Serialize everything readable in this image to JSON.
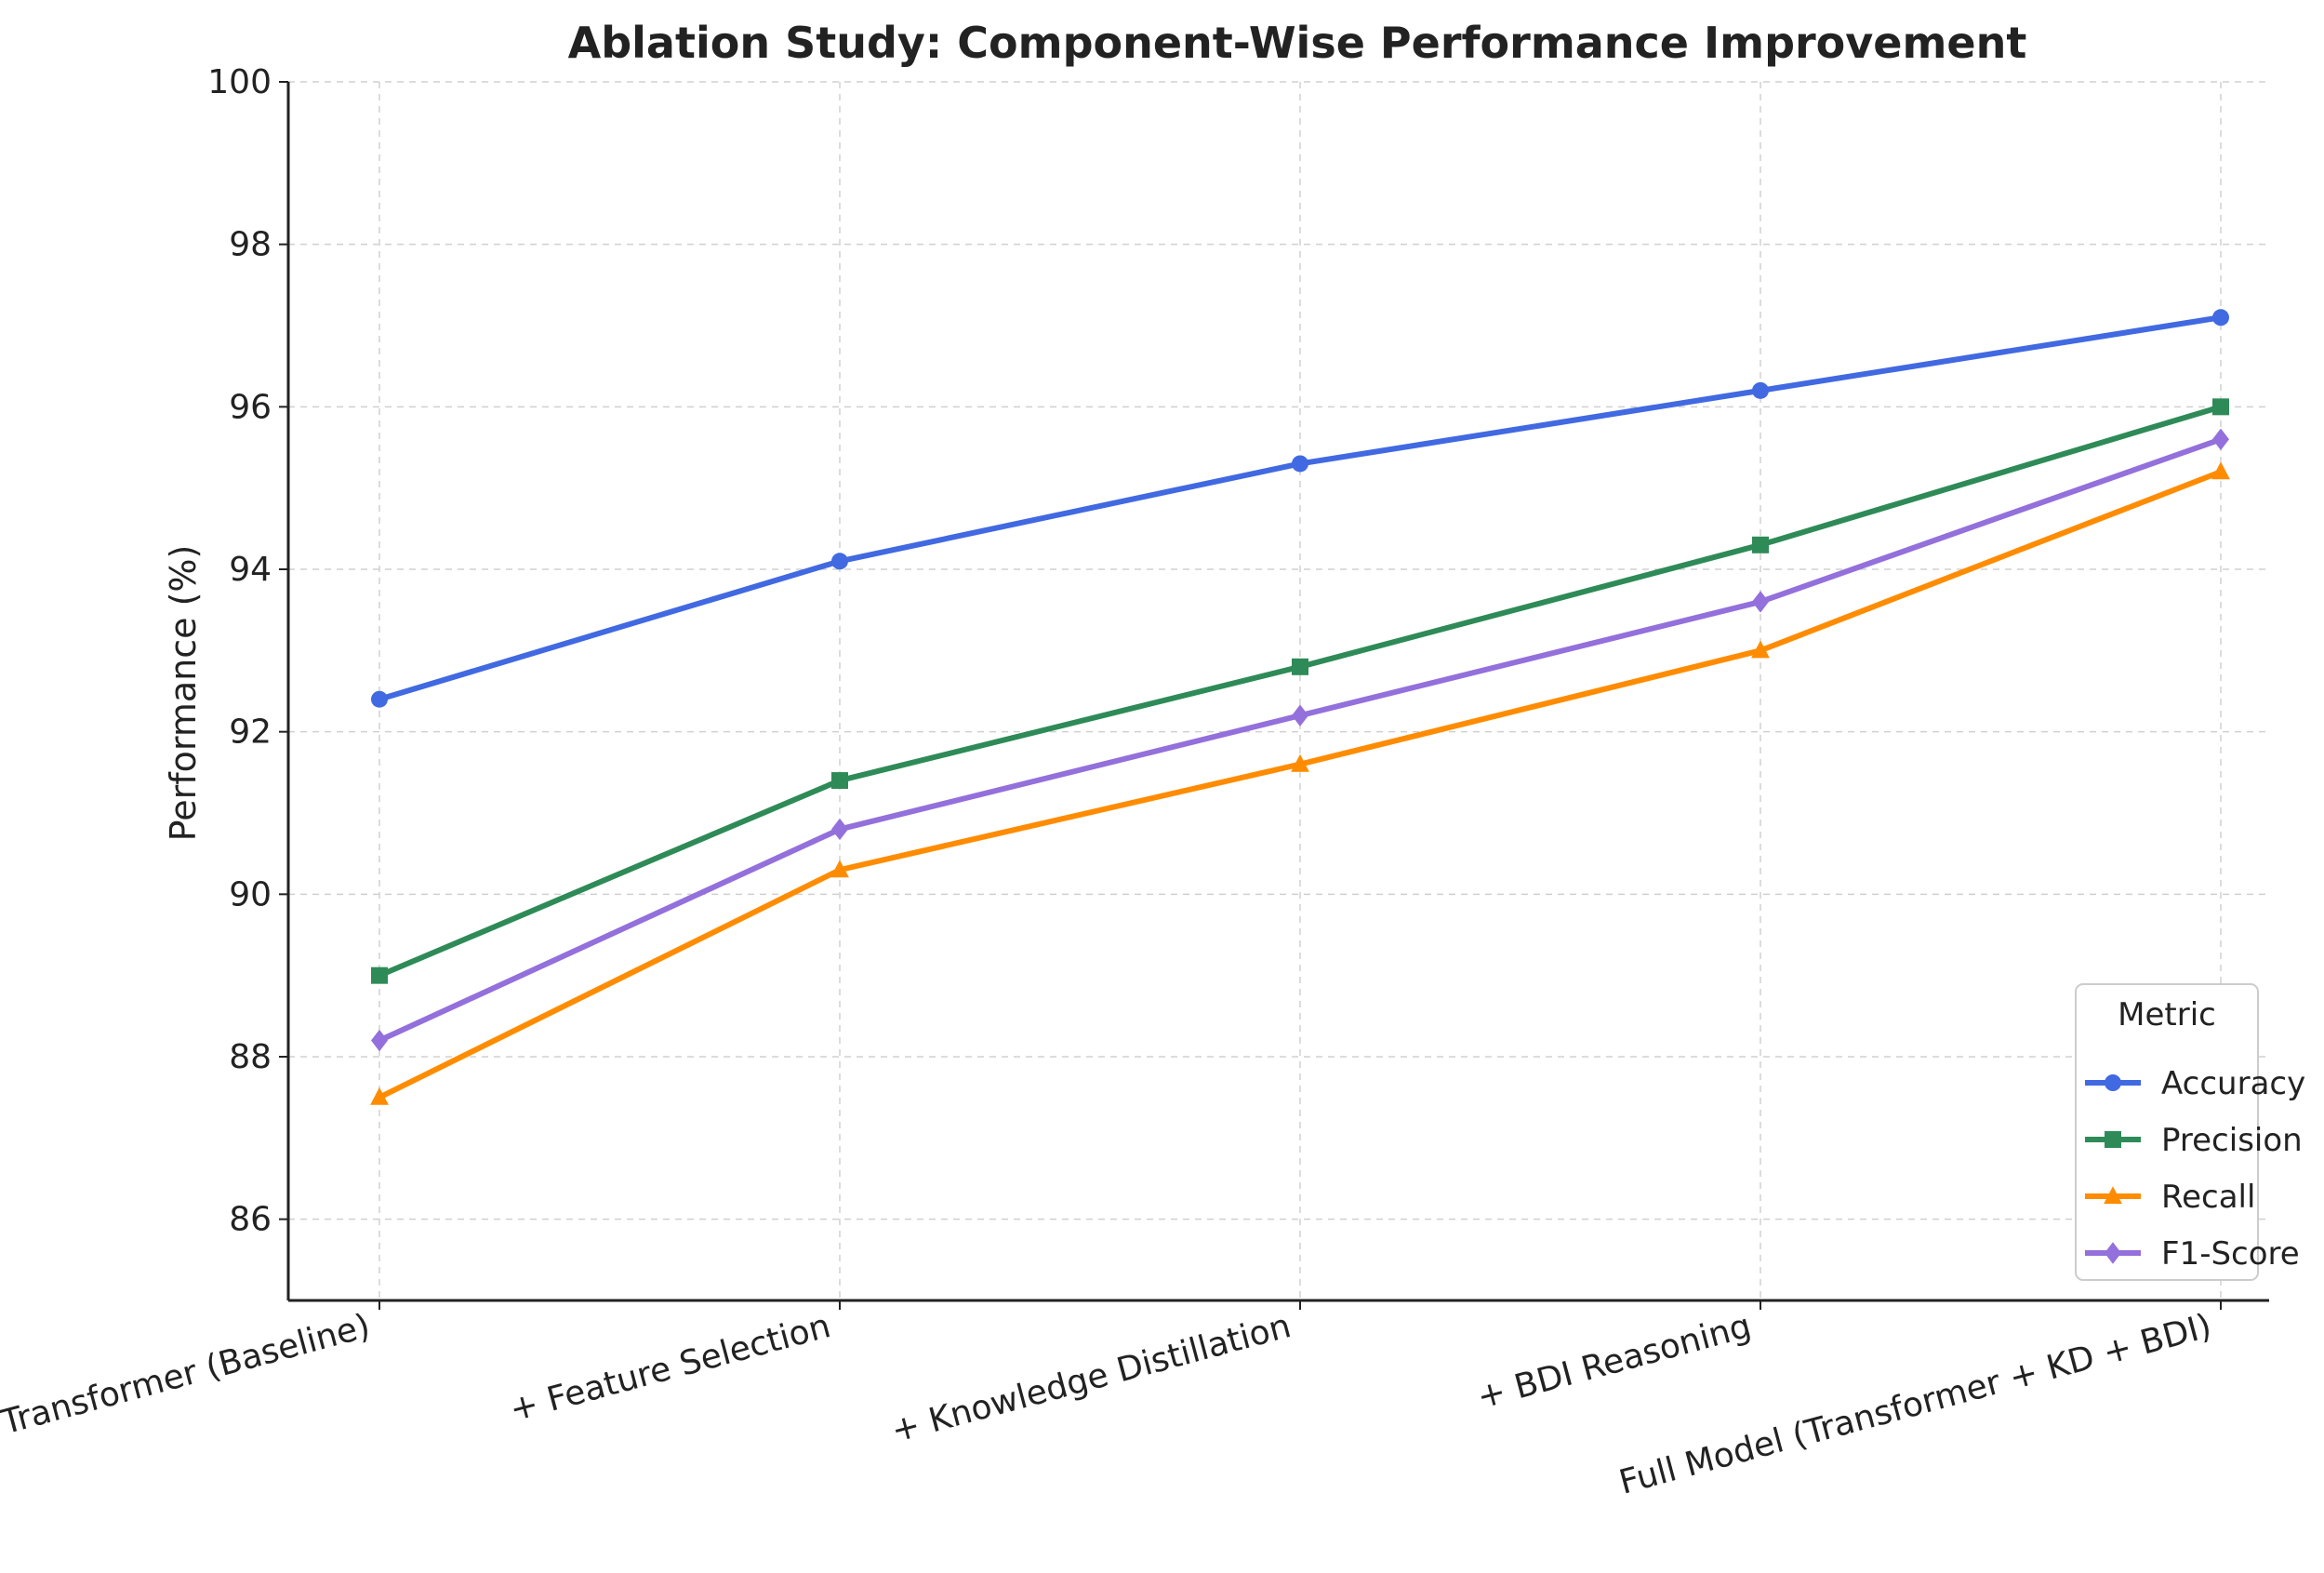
{
  "chart_data": {
    "type": "line",
    "title": "Ablation Study: Component-Wise Performance Improvement",
    "xlabel": "",
    "ylabel": "Performance (%)",
    "ylim": [
      85,
      100
    ],
    "yticks": [
      86,
      88,
      90,
      92,
      94,
      96,
      98,
      100
    ],
    "grid": true,
    "categories": [
      "Transformer (Baseline)",
      "+ Feature Selection",
      "+ Knowledge Distillation",
      "+ BDI Reasoning",
      "Full Model (Transformer + KD + BDI)"
    ],
    "series": [
      {
        "name": "Accuracy",
        "values": [
          92.4,
          94.1,
          95.3,
          96.2,
          97.1
        ],
        "color": "#4169e1",
        "marker": "circle"
      },
      {
        "name": "Precision",
        "values": [
          89.0,
          91.4,
          92.8,
          94.3,
          96.0
        ],
        "color": "#2e8b57",
        "marker": "square"
      },
      {
        "name": "Recall",
        "values": [
          87.5,
          90.3,
          91.6,
          93.0,
          95.2
        ],
        "color": "#ff8c00",
        "marker": "triangle"
      },
      {
        "name": "F1-Score",
        "values": [
          88.2,
          90.8,
          92.2,
          93.6,
          95.6
        ],
        "color": "#9370db",
        "marker": "diamond"
      }
    ],
    "legend": {
      "title": "Metric",
      "placement": "bottom-right"
    }
  }
}
